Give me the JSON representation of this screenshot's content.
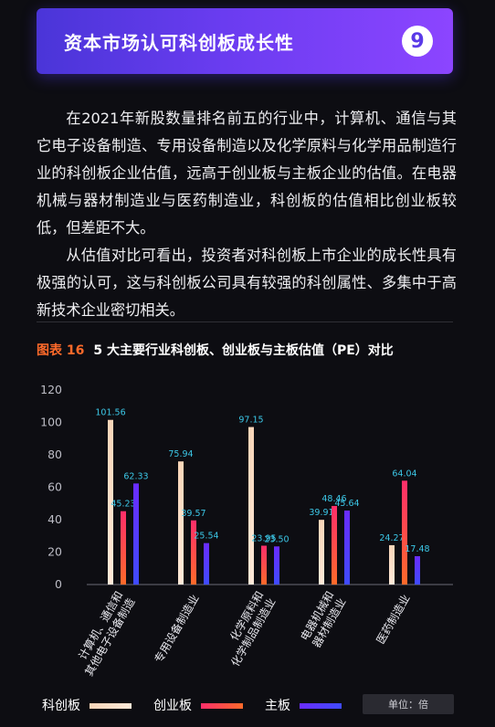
{
  "header": {
    "title": "资本市场认可科创板成长性",
    "badge": "9"
  },
  "paragraphs": [
    "在2021年新股数量排名前五的行业中，计算机、通信与其它电子设备制造、专用设备制造以及化学原料与化学用品制造行业的科创板企业估值，远高于创业板与主板企业的估值。在电器机械与器材制造业与医药制造业，科创板的估值相比创业板较低，但差距不大。",
    "从估值对比可看出，投资者对科创板上市企业的成长性具有极强的认可，这与科创板公司具有较强的科创属性、多集中于高新技术企业密切相关。"
  ],
  "figure": {
    "number": "图表 16",
    "title": "5 大主要行业科创板、创业板与主板估值（PE）对比"
  },
  "unit_label": "单位：倍",
  "chart_data": {
    "type": "bar",
    "title": "5 大主要行业科创板、创业板与主板估值（PE）对比",
    "categories": [
      [
        "计算机、通信和",
        "其他电子设备制造"
      ],
      [
        "专用设备制造业"
      ],
      [
        "化学原料和",
        "化学制品制造业"
      ],
      [
        "电器机械和",
        "器材制造业"
      ],
      [
        "医药制造业"
      ]
    ],
    "series": [
      {
        "name": "科创板",
        "values": [
          101.56,
          75.94,
          97.15,
          39.91,
          24.27
        ],
        "color": "#f8d5b8",
        "color_end": "#ffe9d8"
      },
      {
        "name": "创业板",
        "values": [
          45.23,
          39.57,
          23.95,
          48.46,
          64.04
        ],
        "color": "#ff2e6a",
        "color_end": "#ff6a2a"
      },
      {
        "name": "主板",
        "values": [
          62.33,
          25.54,
          23.5,
          45.64,
          17.48
        ],
        "color": "#6a2cff",
        "color_end": "#3f4bff"
      }
    ],
    "yticks": [
      0,
      20,
      40,
      60,
      80,
      100,
      120
    ],
    "ylim": [
      0,
      120
    ],
    "label_color": "#3cc8e8",
    "legend_position": "bottom-left"
  }
}
